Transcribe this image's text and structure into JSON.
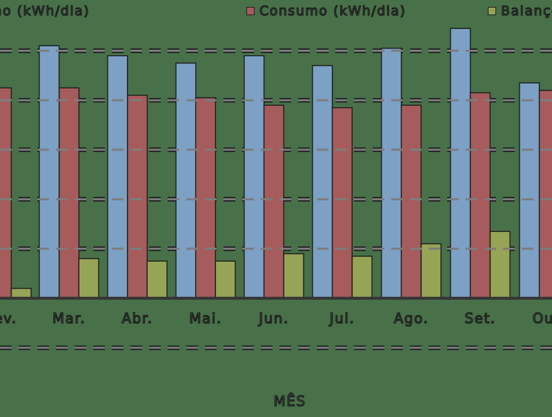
{
  "legend": {
    "items": [
      {
        "label": "Geração (kWh/dia)",
        "color": "#7CA1C5"
      },
      {
        "label": "Consumo (kWh/dia)",
        "color": "#A65C5C"
      },
      {
        "label": "Balanço (kWh/dia)",
        "color": "#95A455"
      }
    ]
  },
  "chart_data": {
    "type": "bar",
    "categories": [
      "Fev.",
      "Mar.",
      "Abr.",
      "Mai.",
      "Jun.",
      "Jul.",
      "Ago.",
      "Set.",
      "Out."
    ],
    "series": [
      {
        "name": "Geração (kWh/dia)",
        "color": "#7CA1C5",
        "values": [
          null,
          5.1,
          4.9,
          4.75,
          4.9,
          4.7,
          5.05,
          5.45,
          4.35
        ]
      },
      {
        "name": "Consumo (kWh/dia)",
        "color": "#A65C5C",
        "values": [
          4.25,
          4.25,
          4.1,
          4.05,
          3.9,
          3.85,
          3.9,
          4.15,
          4.2
        ]
      },
      {
        "name": "Balanço (kWh/dia)",
        "color": "#95A455",
        "values": [
          0.2,
          0.8,
          0.75,
          0.75,
          0.9,
          0.85,
          1.1,
          1.35,
          null
        ]
      }
    ],
    "title": "",
    "xlabel": "MÊS",
    "ylabel": "",
    "ylim": [
      -1,
      5.6
    ],
    "gridlines": [
      5,
      4,
      3,
      2,
      1,
      -1
    ],
    "grid_style": "dashed",
    "legend_position": "top"
  },
  "colors": {
    "background": "#487049",
    "grid_core": "#7D7D7D",
    "grid_edge": "#1C1C1C",
    "axis": "#363636",
    "bar_border": "#1A1A1A",
    "text_stroke": "#1E1E1E"
  }
}
